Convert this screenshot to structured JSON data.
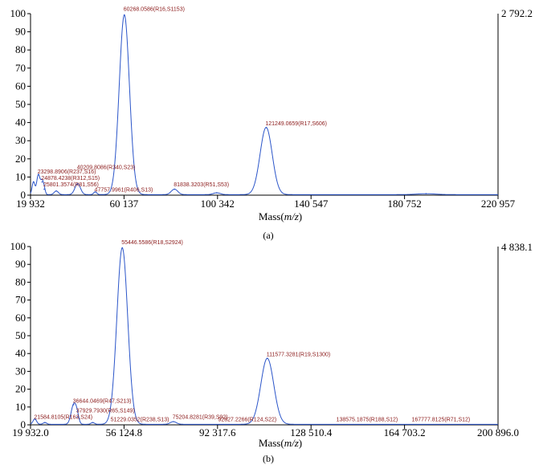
{
  "chart_data": [
    {
      "type": "line",
      "caption": "(a)",
      "xlabel_prefix": "Mass(",
      "xlabel_italic": "m/z",
      "xlabel_suffix": ")",
      "max_intensity": "2 792.2",
      "xlim": [
        19932,
        220957
      ],
      "ylim": [
        0,
        100
      ],
      "xticks": [
        {
          "value": 19932,
          "label": "19 932"
        },
        {
          "value": 60137,
          "label": "60 137"
        },
        {
          "value": 100342,
          "label": "100 342"
        },
        {
          "value": 140547,
          "label": "140 547"
        },
        {
          "value": 180752,
          "label": "180 752"
        },
        {
          "value": 220957,
          "label": "220 957"
        }
      ],
      "yticks": [
        0,
        10,
        20,
        30,
        40,
        50,
        60,
        70,
        80,
        90,
        100
      ],
      "peaks": [
        {
          "mz": 21200,
          "height": 7,
          "width": 600
        },
        {
          "mz": 23298.8906,
          "height": 11,
          "width": 700
        },
        {
          "mz": 24878.4238,
          "height": 7,
          "width": 600
        },
        {
          "mz": 25801.3574,
          "height": 3,
          "width": 500
        },
        {
          "mz": 31000,
          "height": 2,
          "width": 900
        },
        {
          "mz": 40209.8086,
          "height": 6,
          "width": 1200
        },
        {
          "mz": 47757.9961,
          "height": 1.5,
          "width": 700
        },
        {
          "mz": 60268.0586,
          "height": 99,
          "width": 2200
        },
        {
          "mz": 81838.3203,
          "height": 3,
          "width": 1400
        },
        {
          "mz": 100000,
          "height": 1,
          "width": 1500
        },
        {
          "mz": 121249.0659,
          "height": 37,
          "width": 2600
        },
        {
          "mz": 190000,
          "height": 0.5,
          "width": 4000
        }
      ],
      "annotations": [
        {
          "text": "60268.0586(R16,S1153)",
          "mz": 60268.0586,
          "y": 101
        },
        {
          "text": "121249.0659(R17,S606)",
          "mz": 121249.0659,
          "y": 38
        },
        {
          "text": "40209.8086(R340,S23)",
          "mz": 40209.8086,
          "y": 14
        },
        {
          "text": "23298.8906(R237,S16)",
          "mz": 23298.8906,
          "y": 11.5
        },
        {
          "text": "24878.4238(R312,S15)",
          "mz": 24878.4238,
          "y": 8
        },
        {
          "text": "25801.3574(R81,S56)",
          "mz": 25801.3574,
          "y": 4.5
        },
        {
          "text": "47757.9961(R406,S13)",
          "mz": 47757.9961,
          "y": 1.5
        },
        {
          "text": "81838.3203(R51,S53)",
          "mz": 81838.3203,
          "y": 4.5
        }
      ]
    },
    {
      "type": "line",
      "caption": "(b)",
      "xlabel_prefix": "Mass(",
      "xlabel_italic": "m/z",
      "xlabel_suffix": ")",
      "max_intensity": "4 838.1",
      "xlim": [
        19932.0,
        200896.0
      ],
      "ylim": [
        0,
        100
      ],
      "xticks": [
        {
          "value": 19932.0,
          "label": "19 932.0"
        },
        {
          "value": 56124.8,
          "label": "56 124.8"
        },
        {
          "value": 92317.6,
          "label": "92 317.6"
        },
        {
          "value": 128510.4,
          "label": "128 510.4"
        },
        {
          "value": 164703.2,
          "label": "164 703.2"
        },
        {
          "value": 200896.0,
          "label": "200 896.0"
        }
      ],
      "yticks": [
        0,
        10,
        20,
        30,
        40,
        50,
        60,
        70,
        80,
        90,
        100
      ],
      "peaks": [
        {
          "mz": 21584.8105,
          "height": 3,
          "width": 700
        },
        {
          "mz": 25500,
          "height": 1,
          "width": 700
        },
        {
          "mz": 36644.0469,
          "height": 11,
          "width": 1000
        },
        {
          "mz": 37929.793,
          "height": 4,
          "width": 700
        },
        {
          "mz": 44000,
          "height": 1,
          "width": 700
        },
        {
          "mz": 55446.5586,
          "height": 99,
          "width": 2100
        },
        {
          "mz": 75204.8281,
          "height": 1.5,
          "width": 1200
        },
        {
          "mz": 111577.3281,
          "height": 37,
          "width": 2500
        }
      ],
      "annotations": [
        {
          "text": "55446.5586(R18,S2924)",
          "mz": 55446.5586,
          "y": 101
        },
        {
          "text": "111577.3281(R19,S1300)",
          "mz": 111577.3281,
          "y": 38
        },
        {
          "text": "36644.0469(R47,S213)",
          "mz": 36644.0469,
          "y": 12
        },
        {
          "text": "37929.7930(R65,S149)",
          "mz": 37929.793,
          "y": 6.5
        },
        {
          "text": "21584.8105(R163,S24)",
          "mz": 21584.8105,
          "y": 3
        },
        {
          "text": "51229.0352(R238,S13)",
          "mz": 51229.0352,
          "y": 1.5
        },
        {
          "text": "75204.8281(R39,S92)",
          "mz": 75204.8281,
          "y": 3
        },
        {
          "text": "92827.2266(R124,S22)",
          "mz": 92827.2266,
          "y": 1.5
        },
        {
          "text": "138575.1875(R188,S12)",
          "mz": 138575.1875,
          "y": 1.5
        },
        {
          "text": "167777.8125(R71,S12)",
          "mz": 167777.8125,
          "y": 1.5
        }
      ]
    }
  ]
}
